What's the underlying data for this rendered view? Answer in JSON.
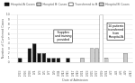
{
  "chart_data": {
    "type": "bar",
    "stacked": true,
    "categories": [
      "2/23",
      "2/26",
      "2/28",
      "3/1",
      "3/3",
      "3/5",
      "3/7",
      "3/9",
      "3/11",
      "3/13",
      "3/15",
      "3/17",
      "3/19",
      "3/21",
      "3/23",
      "3/25",
      "3/27",
      "3/29",
      "3/31",
      "4/2",
      "4/4",
      "4/6",
      "4/9",
      "4/12"
    ],
    "series": [
      {
        "name": "Hospital A Cases",
        "color": "#111111",
        "values": [
          1,
          0,
          3,
          4,
          2,
          2,
          1,
          1,
          1,
          0,
          1,
          0,
          0,
          0,
          0,
          0,
          0,
          0,
          0,
          0,
          0,
          0,
          0,
          0
        ]
      },
      {
        "name": "Hospital B Cases",
        "color": "#cccccc",
        "values": [
          0,
          0,
          0,
          0,
          0,
          0,
          0,
          0,
          0,
          0,
          0,
          0,
          0,
          1,
          0,
          3,
          3,
          0,
          1,
          0,
          0,
          0,
          2,
          0
        ]
      },
      {
        "name": "Transferred to B",
        "color": "#ffffff",
        "values": [
          0,
          0,
          0,
          0,
          0,
          0,
          0,
          0,
          0,
          0,
          0,
          0,
          0,
          0,
          0,
          0,
          0,
          10,
          0,
          0,
          0,
          0,
          0,
          0
        ]
      },
      {
        "name": "Hospital B Cases",
        "color": "#cccccc",
        "values": [
          null,
          null,
          null,
          null,
          null,
          null,
          null,
          null,
          null,
          null,
          null,
          null,
          null,
          null,
          null,
          null,
          null,
          null,
          null,
          null,
          null,
          null,
          null,
          null
        ]
      }
    ],
    "xlabel": "Date of Admission",
    "ylabel": "Number of Confirmed Cases",
    "ylim": [
      0,
      10
    ],
    "yticks": [
      0,
      1,
      2,
      3,
      4,
      5,
      6,
      7,
      8,
      9,
      10
    ],
    "grid": true,
    "legend": "top",
    "annotations": [
      {
        "text": "Supplies\nand training\nprovided",
        "x": "3/13",
        "y": 5.5
      },
      {
        "text": "10 patients\ntransferred\nfrom\nHospital A",
        "x": "4/4",
        "y": 6.5
      }
    ]
  }
}
